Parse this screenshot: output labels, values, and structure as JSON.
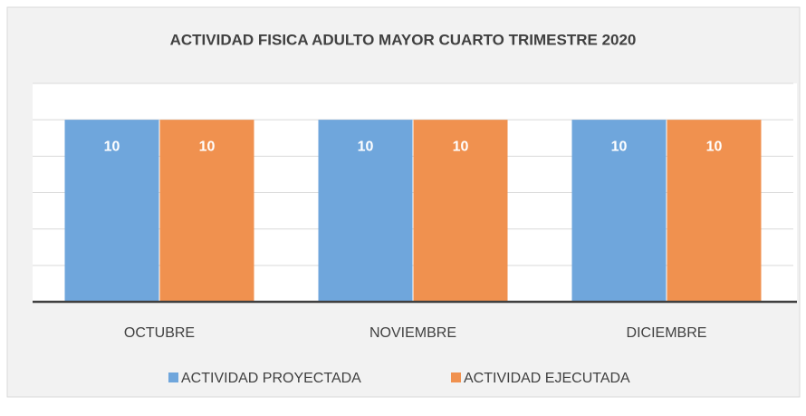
{
  "chart_data": {
    "type": "bar",
    "title": "ACTIVIDAD FISICA ADULTO MAYOR CUARTO TRIMESTRE 2020",
    "categories": [
      "OCTUBRE",
      "NOVIEMBRE",
      "DICIEMBRE"
    ],
    "series": [
      {
        "name": "ACTIVIDAD PROYECTADA",
        "color": "#6fa6dc",
        "values": [
          10,
          10,
          10
        ]
      },
      {
        "name": "ACTIVIDAD EJECUTADA",
        "color": "#f0914f",
        "values": [
          10,
          10,
          10
        ]
      }
    ],
    "ylim": [
      0,
      12
    ],
    "yticks": [
      0,
      2,
      4,
      6,
      8,
      10,
      12
    ],
    "grid": true,
    "legend": "bottom"
  }
}
